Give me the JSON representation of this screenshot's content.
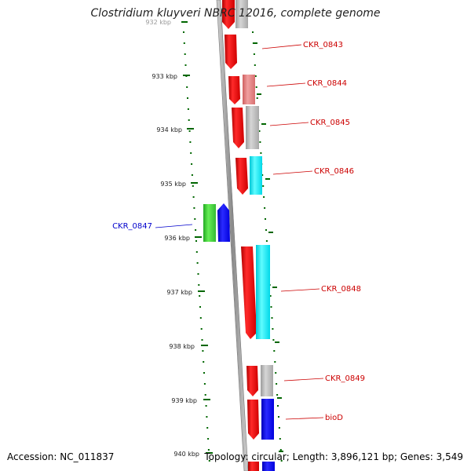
{
  "title": "Clostridium kluyveri NBRC 12016, complete genome",
  "footer": {
    "accession": "Accession: NC_011837",
    "summary": "Topology: circular; Length: 3,896,121 bp; Genes: 3,549"
  },
  "scale": {
    "ticks": [
      "932 kbp",
      "933 kbp",
      "934 kbp",
      "935 kbp",
      "936 kbp",
      "937 kbp",
      "938 kbp",
      "939 kbp",
      "940 kbp"
    ]
  },
  "colors": {
    "red": "#ff0000",
    "salmon": "#e87878",
    "gray": "#bbbbbb",
    "cyan": "#00f0ff",
    "green": "#44cc33",
    "blue": "#0000ff",
    "label_red": "#cc0000",
    "label_blue": "#0000cc",
    "tick_green": "#006600"
  },
  "genes": [
    {
      "label": "CKR_0843",
      "color": "label_red"
    },
    {
      "label": "CKR_0844",
      "color": "label_red"
    },
    {
      "label": "CKR_0845",
      "color": "label_red"
    },
    {
      "label": "CKR_0846",
      "color": "label_red"
    },
    {
      "label": "CKR_0847",
      "color": "label_blue"
    },
    {
      "label": "CKR_0848",
      "color": "label_red"
    },
    {
      "label": "CKR_0849",
      "color": "label_red"
    },
    {
      "label": "bioD",
      "color": "label_red"
    }
  ]
}
